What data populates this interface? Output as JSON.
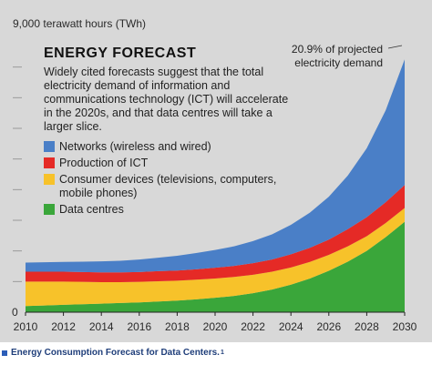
{
  "chart_data": {
    "type": "area",
    "stacked": true,
    "title": "ENERGY FORECAST",
    "subtitle": "Widely cited forecasts suggest that the total electricity demand of information and communications technology (ICT) will accelerate in the 2020s, and that data centres will take a larger slice.",
    "ylabel": "9,000 terawatt hours (TWh)",
    "ylim": [
      0,
      9000
    ],
    "x": [
      2010,
      2011,
      2012,
      2013,
      2014,
      2015,
      2016,
      2017,
      2018,
      2019,
      2020,
      2021,
      2022,
      2023,
      2024,
      2025,
      2026,
      2027,
      2028,
      2029,
      2030
    ],
    "x_ticks": [
      "2010",
      "2012",
      "2014",
      "2016",
      "2018",
      "2020",
      "2022",
      "2024",
      "2026",
      "2028",
      "2030"
    ],
    "grid": false,
    "series": [
      {
        "name": "Data centres",
        "color": "#3aa63a",
        "values": [
          200,
          220,
          240,
          260,
          280,
          300,
          320,
          350,
          380,
          420,
          470,
          530,
          620,
          740,
          900,
          1100,
          1350,
          1650,
          2000,
          2450,
          2950
        ]
      },
      {
        "name": "Consumer devices (televisions, computers, mobile phones)",
        "color": "#f7c22a",
        "values": [
          800,
          780,
          760,
          730,
          700,
          680,
          670,
          660,
          650,
          640,
          630,
          620,
          600,
          580,
          560,
          540,
          520,
          500,
          480,
          460,
          450
        ]
      },
      {
        "name": "Production of ICT",
        "color": "#e52a26",
        "values": [
          320,
          320,
          320,
          320,
          320,
          320,
          320,
          330,
          330,
          340,
          350,
          360,
          380,
          400,
          430,
          460,
          500,
          560,
          620,
          680,
          750
        ]
      },
      {
        "name": "Networks (wireless and wired)",
        "color": "#4a7fc7",
        "values": [
          300,
          310,
          320,
          340,
          360,
          380,
          410,
          440,
          480,
          530,
          580,
          640,
          720,
          820,
          960,
          1150,
          1400,
          1750,
          2250,
          3000,
          4100
        ]
      }
    ],
    "legend_order": [
      "Networks (wireless and wired)",
      "Production of ICT",
      "Consumer devices (televisions, computers, mobile phones)",
      "Data centres"
    ],
    "legend_position": "top-left",
    "annotation": "20.9% of projected electricity demand"
  },
  "caption": {
    "text": "Energy Consumption Forecast for Data Centers.",
    "ref": "1",
    "bullet_color": "#2b5db8"
  }
}
